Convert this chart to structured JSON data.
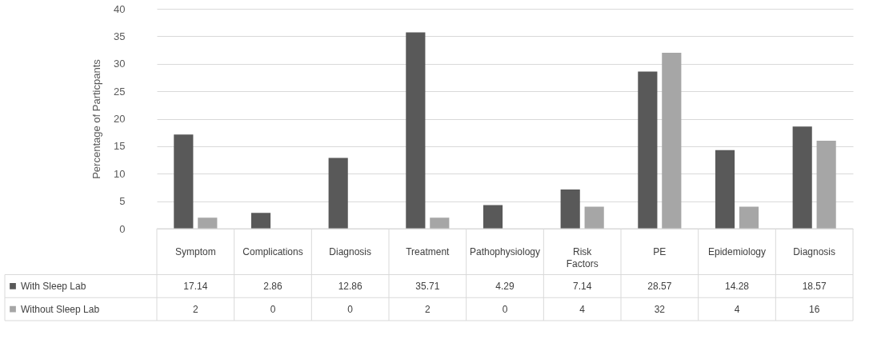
{
  "chart_data": {
    "type": "bar",
    "ylabel": "Percentage of Particpants",
    "categories": [
      "Symptom",
      "Complications",
      "Diagnosis",
      "Treatment",
      "Pathophysiology",
      "Risk Factors",
      "PE",
      "Epidemiology",
      "Diagnosis"
    ],
    "series": [
      {
        "name": "With Sleep Lab",
        "color": "#595959",
        "values": [
          17.14,
          2.86,
          12.86,
          35.71,
          4.29,
          7.14,
          28.57,
          14.28,
          18.57
        ]
      },
      {
        "name": "Without Sleep Lab",
        "color": "#a6a6a6",
        "values": [
          2,
          0,
          0,
          2,
          0,
          4,
          32,
          4,
          16
        ]
      }
    ],
    "ylim": [
      0,
      40
    ],
    "yticks": [
      0,
      5,
      10,
      15,
      20,
      25,
      30,
      35,
      40
    ],
    "grid": "y",
    "legend": "bottom",
    "data_labels": true
  }
}
